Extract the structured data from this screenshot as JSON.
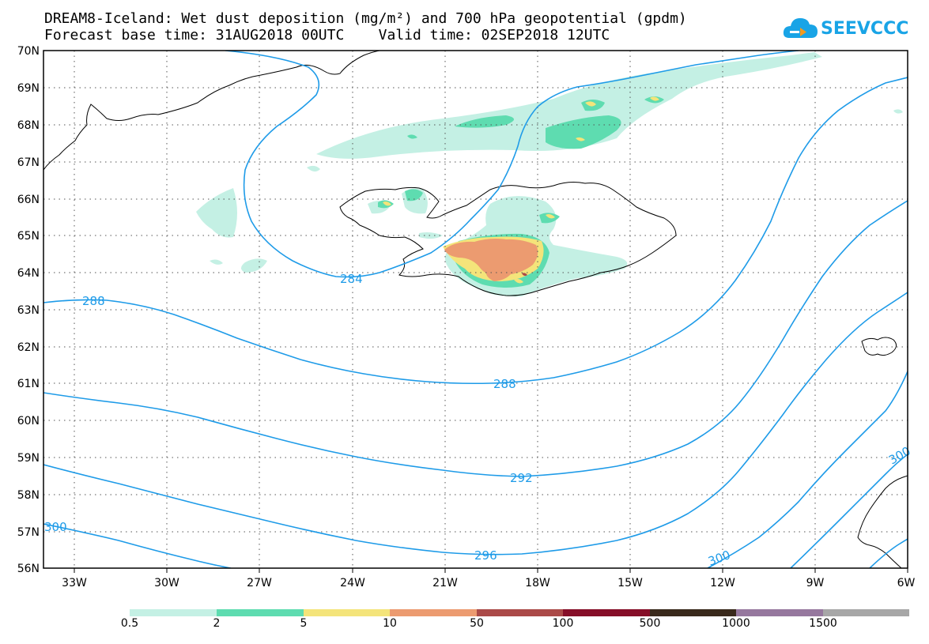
{
  "header": {
    "title_line1": "DREAM8-Iceland: Wet dust deposition (mg/m²) and 700 hPa geopotential (gpdm)",
    "title_line2": "Forecast base time: 31AUG2018 00UTC    Valid time: 02SEP2018 12UTC"
  },
  "logo": {
    "text": "SEEVCCC",
    "icon": "cloud-icon"
  },
  "map": {
    "lat_labels": [
      "70N",
      "69N",
      "68N",
      "67N",
      "66N",
      "65N",
      "64N",
      "63N",
      "62N",
      "61N",
      "60N",
      "59N",
      "58N",
      "57N",
      "56N"
    ],
    "lon_labels": [
      "33W",
      "30W",
      "27W",
      "24W",
      "21W",
      "18W",
      "15W",
      "12W",
      "9W",
      "6W"
    ],
    "contour_labels": [
      "284",
      "288",
      "288",
      "292",
      "296",
      "300",
      "300",
      "300"
    ]
  },
  "legend": {
    "labels": [
      "0.5",
      "2",
      "5",
      "10",
      "50",
      "100",
      "500",
      "1000",
      "1500"
    ],
    "colors": [
      "#c4f0e4",
      "#5edcb0",
      "#f4e47a",
      "#ec9b70",
      "#ab4a48",
      "#860e28",
      "#3a2a1c",
      "#96789e",
      "#a7a7a7"
    ]
  }
}
